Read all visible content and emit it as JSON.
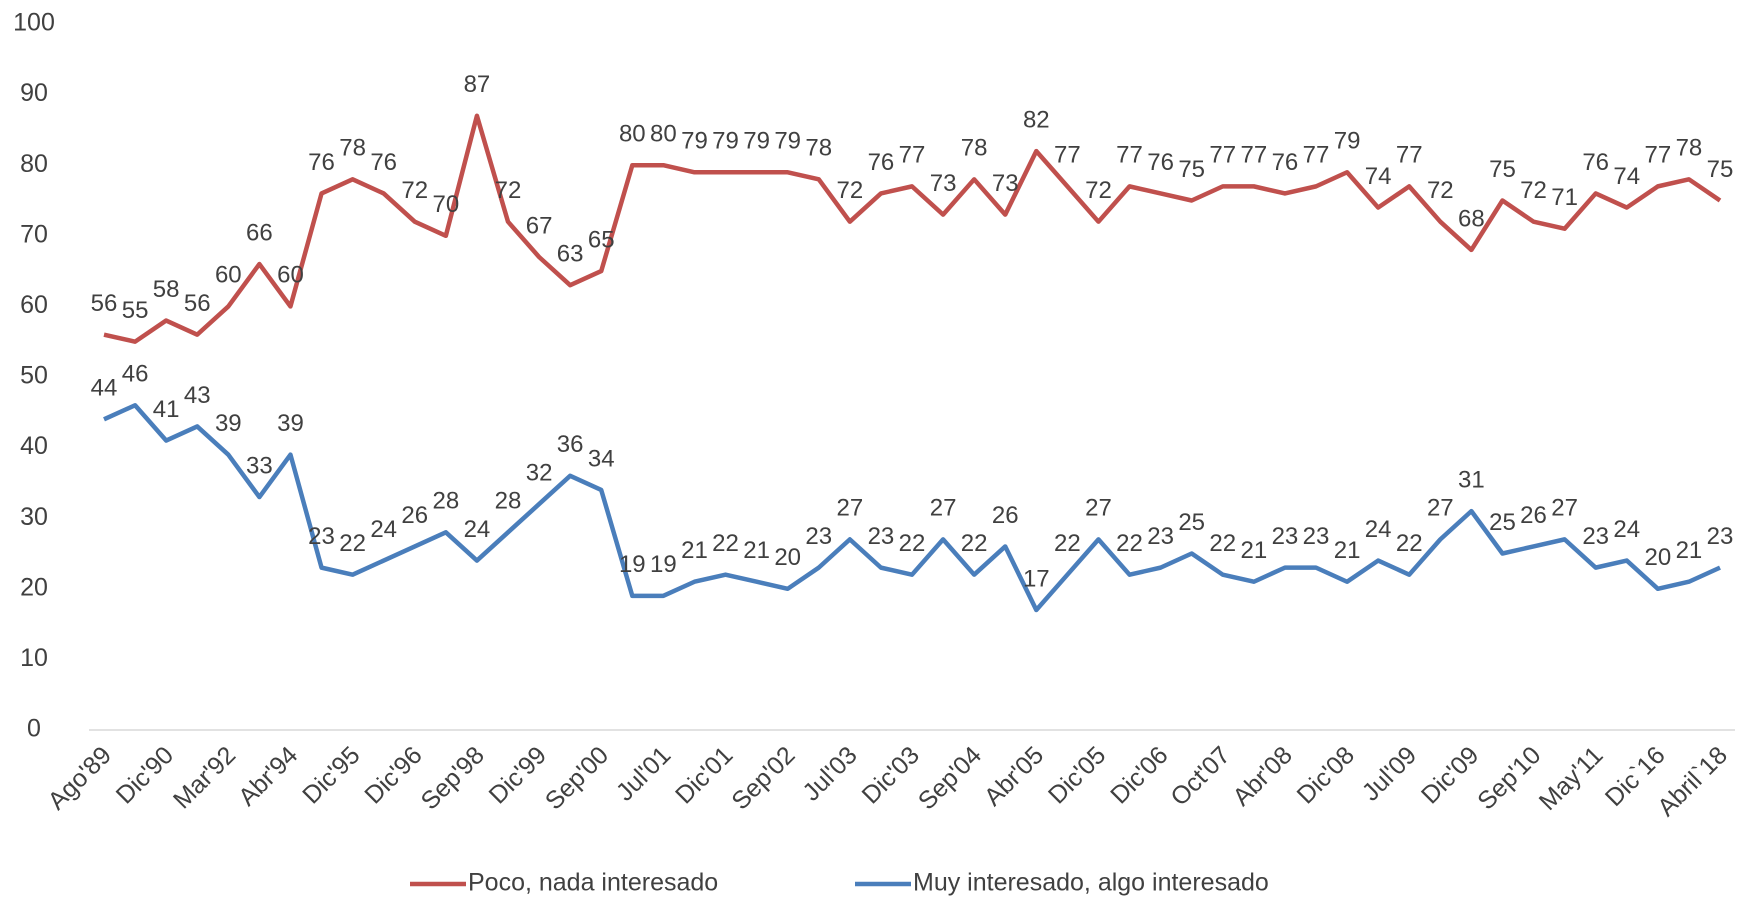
{
  "chart_data": {
    "type": "line",
    "categories": [
      "Ago'89",
      null,
      "Dic'90",
      null,
      "Mar'92",
      null,
      "Abr'94",
      null,
      "Dic'95",
      null,
      "Dic'96",
      null,
      "Sep'98",
      null,
      "Dic'99",
      null,
      "Sep'00",
      null,
      "Jul'01",
      null,
      "Dic'01",
      null,
      "Sep'02",
      null,
      "Jul'03",
      null,
      "Dic'03",
      null,
      "Sep'04",
      null,
      "Abr'05",
      null,
      "Dic'05",
      null,
      "Dic'06",
      null,
      "Oct'07",
      null,
      "Abr'08",
      null,
      "Dic'08",
      null,
      "Jul'09",
      null,
      "Dic'09",
      null,
      "Sep'10",
      null,
      "May'11",
      null,
      "Dic`16",
      null,
      "Abril`18"
    ],
    "series": [
      {
        "name": "Poco, nada interesado",
        "color": "#c0504d",
        "values": [
          56,
          55,
          58,
          56,
          60,
          66,
          60,
          76,
          78,
          76,
          72,
          70,
          87,
          72,
          67,
          63,
          65,
          80,
          80,
          79,
          79,
          79,
          79,
          78,
          72,
          76,
          77,
          73,
          78,
          73,
          82,
          77,
          72,
          77,
          76,
          75,
          77,
          77,
          76,
          77,
          79,
          74,
          77,
          72,
          68,
          75,
          72,
          71,
          76,
          74,
          77,
          78,
          75
        ]
      },
      {
        "name": "Muy interesado, algo interesado",
        "color": "#4a7ebb",
        "values": [
          44,
          46,
          41,
          43,
          39,
          33,
          39,
          23,
          22,
          24,
          26,
          28,
          24,
          28,
          32,
          36,
          34,
          19,
          19,
          21,
          22,
          21,
          20,
          23,
          27,
          23,
          22,
          27,
          22,
          26,
          17,
          22,
          27,
          22,
          23,
          25,
          22,
          21,
          23,
          23,
          21,
          24,
          22,
          27,
          31,
          25,
          26,
          27,
          23,
          24,
          20,
          21,
          23
        ]
      }
    ],
    "ylim": [
      0,
      100
    ],
    "yticks": [
      0,
      10,
      20,
      30,
      40,
      50,
      60,
      70,
      80,
      90,
      100
    ],
    "grid": false,
    "legend": "bottom"
  }
}
